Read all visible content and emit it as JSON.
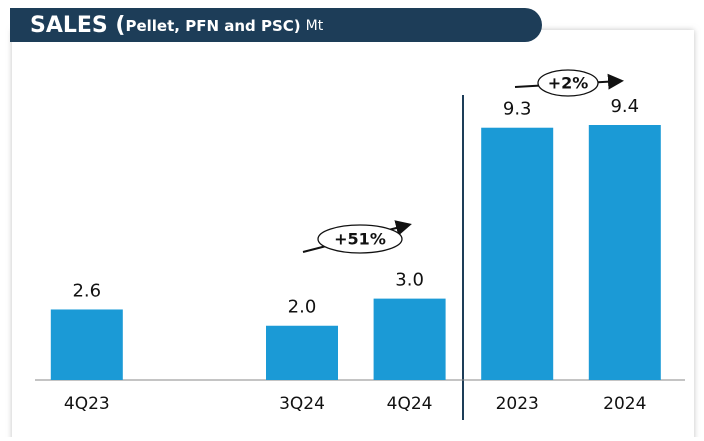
{
  "chart_data": {
    "type": "bar",
    "title_parts": [
      "SALES (",
      "Pellet, PFN and PSC)",
      "Mt"
    ],
    "categories": [
      "4Q23",
      null,
      "3Q24",
      "4Q24",
      "2023",
      "2024"
    ],
    "values": [
      2.6,
      null,
      2.0,
      3.0,
      9.3,
      9.4
    ],
    "value_labels": [
      "2.6",
      null,
      "2.0",
      "3.0",
      "9.3",
      "9.4"
    ],
    "color": "#1b9ad6",
    "annotations": [
      "+51%",
      "+2%"
    ]
  }
}
